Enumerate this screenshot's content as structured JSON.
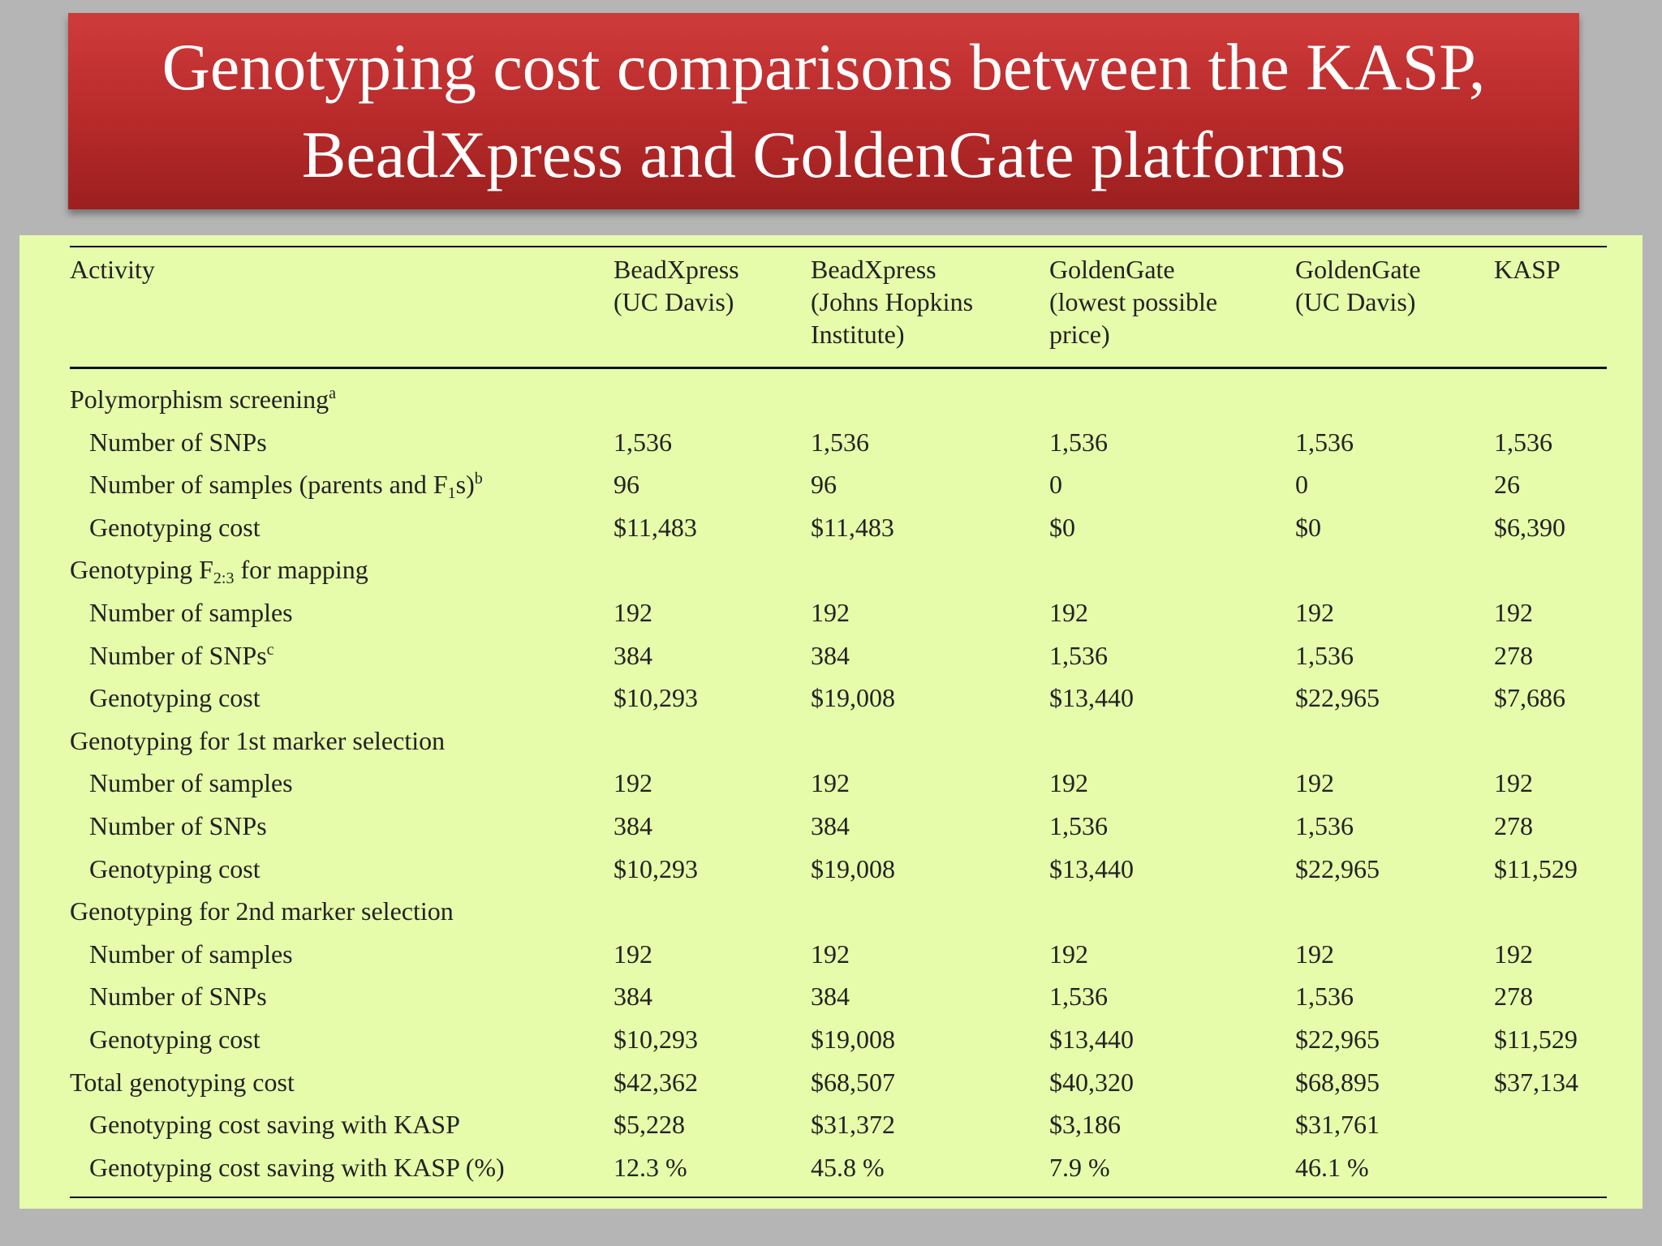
{
  "title": "Genotyping cost comparisons between the KASP, BeadXpress and GoldenGate platforms",
  "columns": [
    "Activity",
    "BeadXpress\n(UC Davis)",
    "BeadXpress\n(Johns Hopkins\nInstitute)",
    "GoldenGate\n(lowest possible\nprice)",
    "GoldenGate\n(UC Davis)",
    "KASP"
  ],
  "rows": [
    {
      "label": "Polymorphism screening",
      "sup": "a",
      "values": []
    },
    {
      "label": "Number of SNPs",
      "indent": true,
      "values": [
        "1,536",
        "1,536",
        "1,536",
        "1,536",
        "1,536"
      ]
    },
    {
      "label_pre": "Number of samples (parents and F",
      "label_sub": "1",
      "label_post": "s)",
      "sup": "b",
      "indent": true,
      "values": [
        "96",
        "96",
        "0",
        "0",
        "26"
      ]
    },
    {
      "label": "Genotyping cost",
      "indent": true,
      "values": [
        "$11,483",
        "$11,483",
        "$0",
        "$0",
        "$6,390"
      ]
    },
    {
      "label_pre": "Genotyping F",
      "label_sub": "2:3",
      "label_post": " for mapping",
      "values": []
    },
    {
      "label": "Number of samples",
      "indent": true,
      "values": [
        "192",
        "192",
        "192",
        "192",
        "192"
      ]
    },
    {
      "label": "Number of SNPs",
      "sup": "c",
      "indent": true,
      "values": [
        "384",
        "384",
        "1,536",
        "1,536",
        "278"
      ]
    },
    {
      "label": "Genotyping cost",
      "indent": true,
      "values": [
        "$10,293",
        "$19,008",
        "$13,440",
        "$22,965",
        "$7,686"
      ]
    },
    {
      "label": "Genotyping for 1st marker selection",
      "values": []
    },
    {
      "label": "Number of samples",
      "indent": true,
      "values": [
        "192",
        "192",
        "192",
        "192",
        "192"
      ]
    },
    {
      "label": "Number of SNPs",
      "indent": true,
      "values": [
        "384",
        "384",
        "1,536",
        "1,536",
        "278"
      ]
    },
    {
      "label": "Genotyping cost",
      "indent": true,
      "values": [
        "$10,293",
        "$19,008",
        "$13,440",
        "$22,965",
        "$11,529"
      ]
    },
    {
      "label": "Genotyping for 2nd marker selection",
      "values": []
    },
    {
      "label": "Number of samples",
      "indent": true,
      "values": [
        "192",
        "192",
        "192",
        "192",
        "192"
      ]
    },
    {
      "label": "Number of SNPs",
      "indent": true,
      "values": [
        "384",
        "384",
        "1,536",
        "1,536",
        "278"
      ]
    },
    {
      "label": "Genotyping cost",
      "indent": true,
      "values": [
        "$10,293",
        "$19,008",
        "$13,440",
        "$22,965",
        "$11,529"
      ]
    },
    {
      "label": "Total genotyping cost",
      "values": [
        "$42,362",
        "$68,507",
        "$40,320",
        "$68,895",
        "$37,134"
      ]
    },
    {
      "label": "Genotyping cost saving with KASP",
      "indent": true,
      "values": [
        "$5,228",
        "$31,372",
        "$3,186",
        "$31,761",
        ""
      ]
    },
    {
      "label": "Genotyping cost saving with KASP (%)",
      "indent": true,
      "values": [
        "12.3 %",
        "45.8 %",
        "7.9 %",
        "46.1 %",
        ""
      ]
    }
  ]
}
